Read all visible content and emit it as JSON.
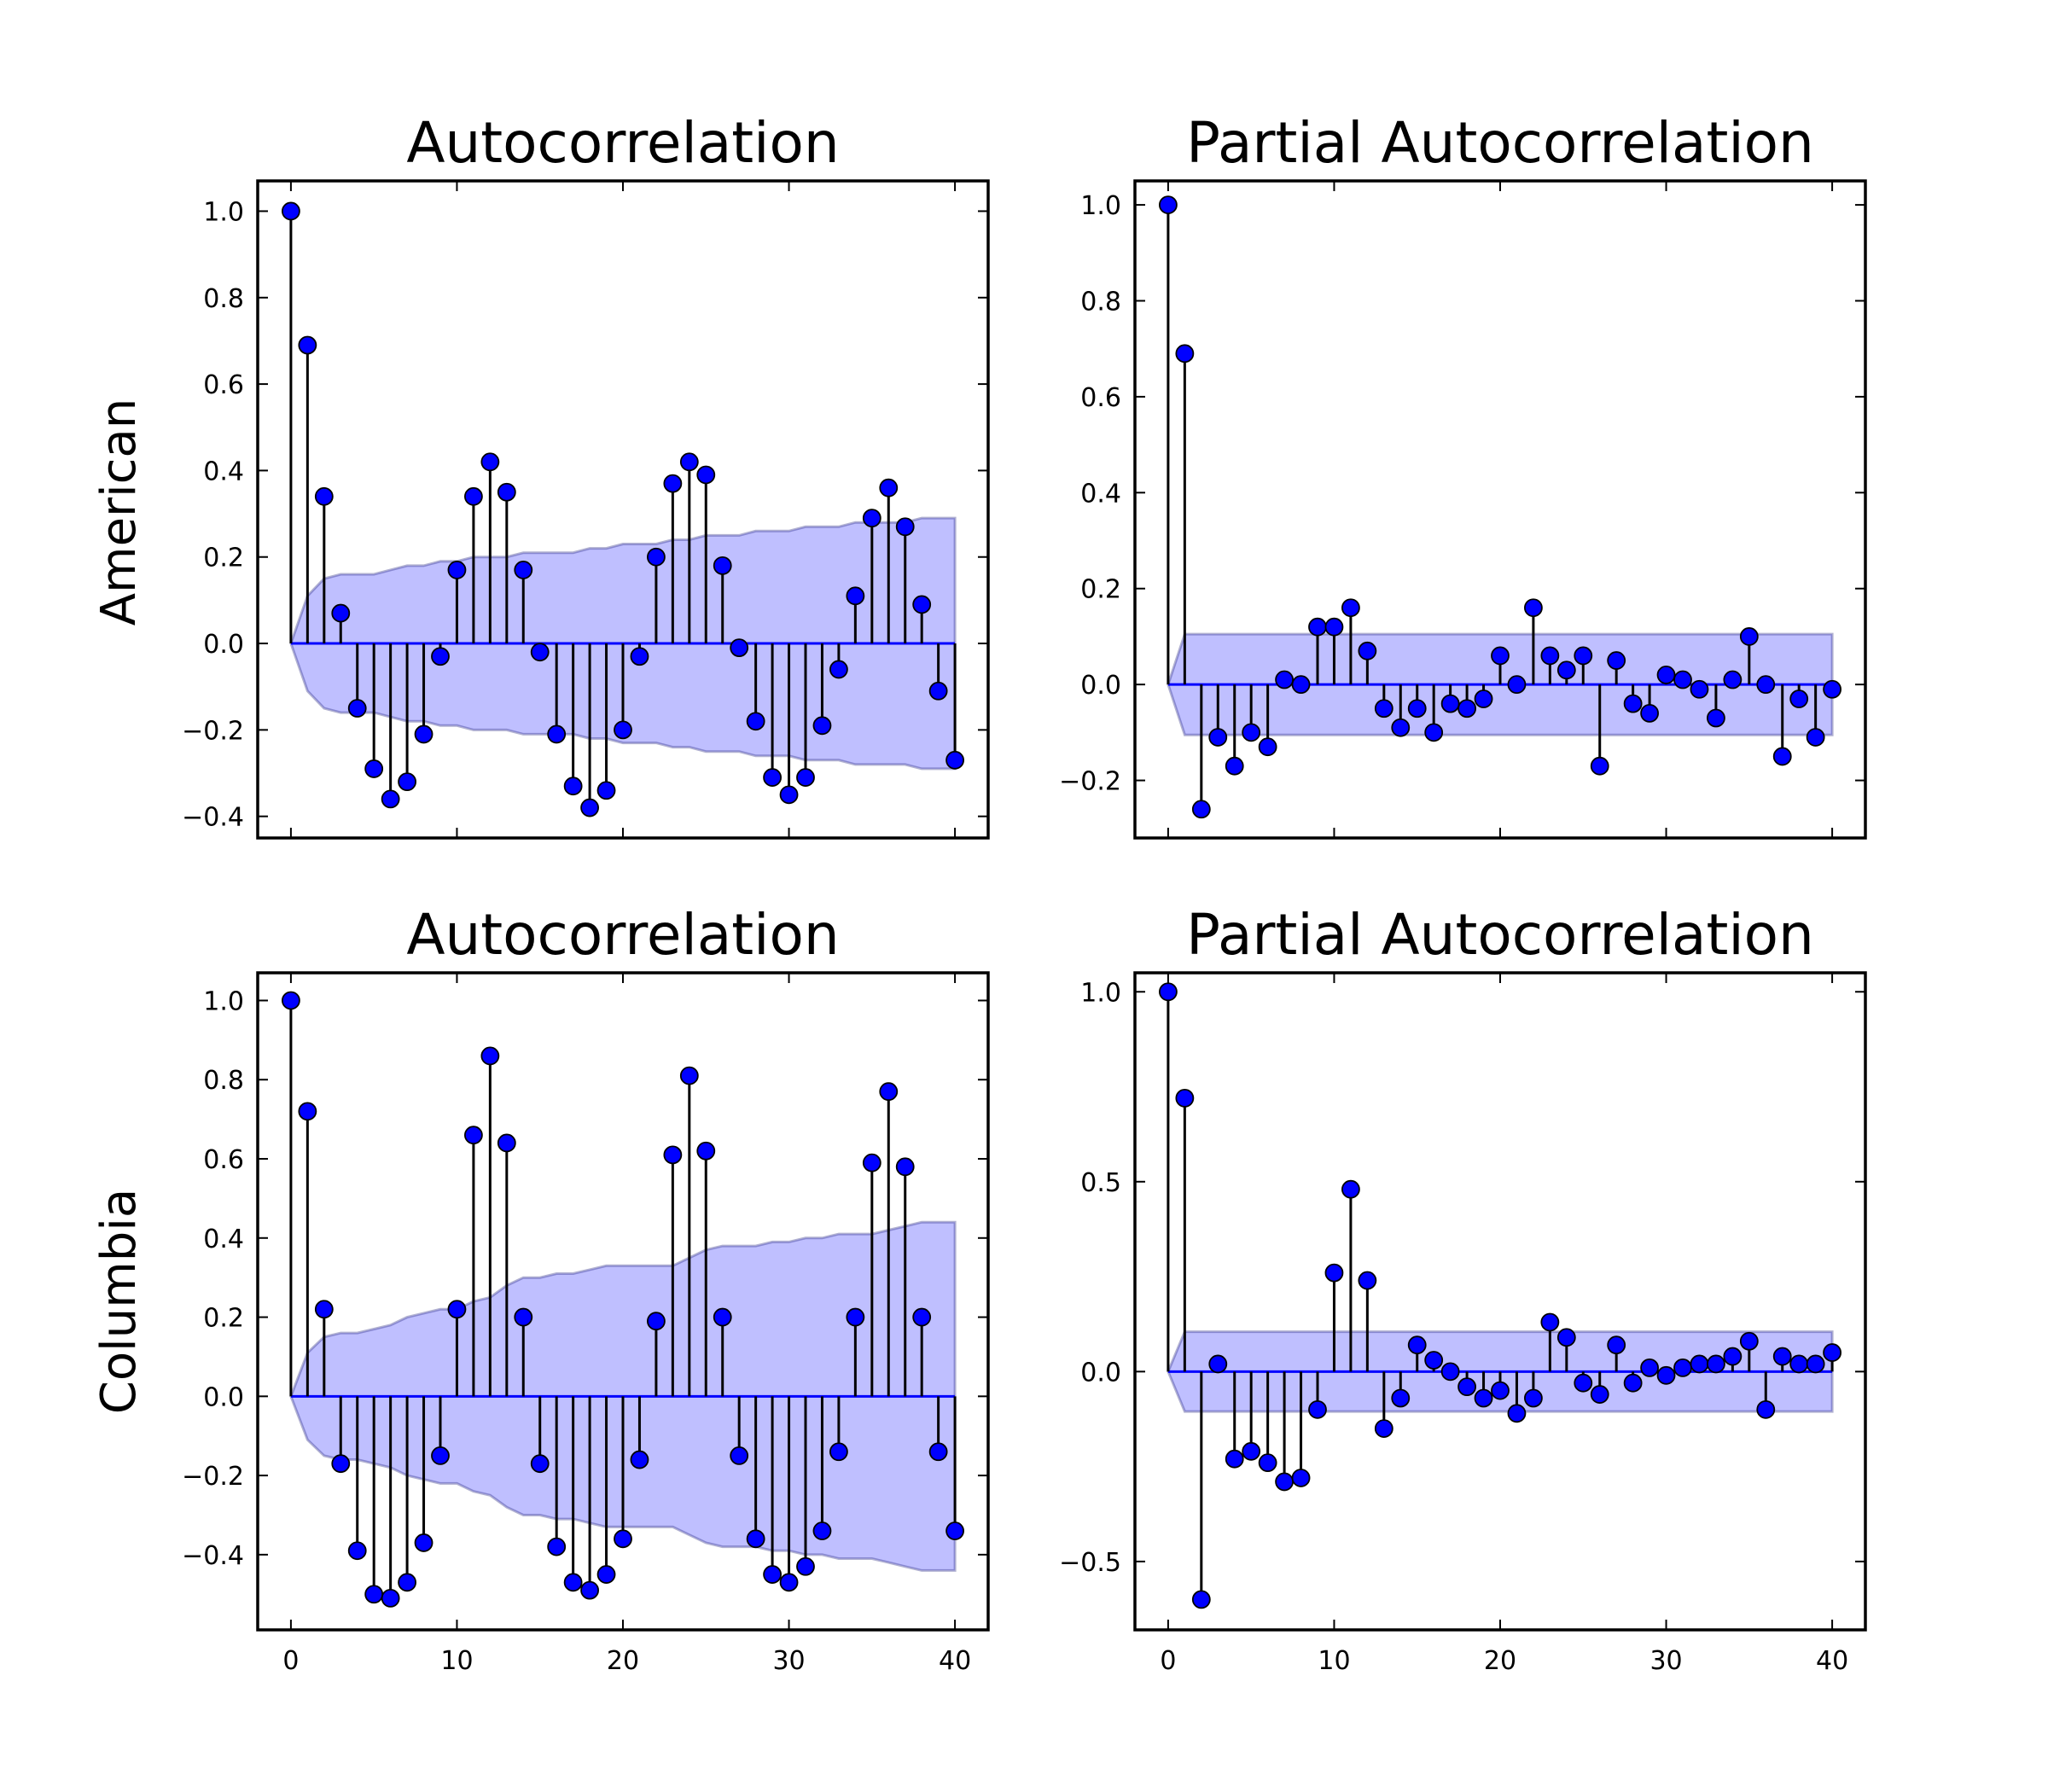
{
  "chart_data": [
    {
      "type": "stem",
      "title": "Autocorrelation",
      "row_label": "American",
      "ylim": [
        -0.45,
        1.07
      ],
      "yticks": [
        -0.4,
        -0.2,
        0.0,
        0.2,
        0.4,
        0.6,
        0.8,
        1.0
      ],
      "ytick_labels": [
        "−0.4",
        "−0.2",
        "0.0",
        "0.2",
        "0.4",
        "0.6",
        "0.8",
        "1.0"
      ],
      "xlim": [
        -2,
        42
      ],
      "xticks": [
        0,
        10,
        20,
        30,
        40
      ],
      "xtick_labels": [],
      "values": [
        1.0,
        0.69,
        0.34,
        0.07,
        -0.15,
        -0.29,
        -0.36,
        -0.32,
        -0.21,
        -0.03,
        0.17,
        0.34,
        0.42,
        0.35,
        0.17,
        -0.02,
        -0.21,
        -0.33,
        -0.38,
        -0.34,
        -0.2,
        -0.03,
        0.2,
        0.37,
        0.42,
        0.39,
        0.18,
        -0.01,
        -0.18,
        -0.31,
        -0.35,
        -0.31,
        -0.19,
        -0.06,
        0.11,
        0.29,
        0.36,
        0.27,
        0.09,
        -0.11,
        -0.27
      ],
      "confidence_band": [
        0.0,
        0.11,
        0.15,
        0.16,
        0.16,
        0.16,
        0.17,
        0.18,
        0.18,
        0.19,
        0.19,
        0.2,
        0.2,
        0.2,
        0.21,
        0.21,
        0.21,
        0.21,
        0.22,
        0.22,
        0.23,
        0.23,
        0.23,
        0.24,
        0.24,
        0.25,
        0.25,
        0.25,
        0.26,
        0.26,
        0.26,
        0.27,
        0.27,
        0.27,
        0.28,
        0.28,
        0.28,
        0.28,
        0.29,
        0.29,
        0.29
      ],
      "grid": false
    },
    {
      "type": "stem",
      "title": "Partial Autocorrelation",
      "row_label": "",
      "ylim": [
        -0.32,
        1.05
      ],
      "yticks": [
        -0.2,
        0.0,
        0.2,
        0.4,
        0.6,
        0.8,
        1.0
      ],
      "ytick_labels": [
        "−0.2",
        "0.0",
        "0.2",
        "0.4",
        "0.6",
        "0.8",
        "1.0"
      ],
      "xlim": [
        -2,
        42
      ],
      "xticks": [
        0,
        10,
        20,
        30,
        40
      ],
      "xtick_labels": [],
      "values": [
        1.0,
        0.69,
        -0.26,
        -0.11,
        -0.17,
        -0.1,
        -0.13,
        0.01,
        0.0,
        0.12,
        0.12,
        0.16,
        0.07,
        -0.05,
        -0.09,
        -0.05,
        -0.1,
        -0.04,
        -0.05,
        -0.03,
        0.06,
        0.0,
        0.16,
        0.06,
        0.03,
        0.06,
        -0.17,
        0.05,
        -0.04,
        -0.06,
        0.02,
        0.01,
        -0.01,
        -0.07,
        0.01,
        0.1,
        0.0,
        -0.15,
        -0.03,
        -0.11,
        -0.01
      ],
      "confidence_band": [
        0.0,
        0.105,
        0.105,
        0.105,
        0.105,
        0.105,
        0.105,
        0.105,
        0.105,
        0.105,
        0.105,
        0.105,
        0.105,
        0.105,
        0.105,
        0.105,
        0.105,
        0.105,
        0.105,
        0.105,
        0.105,
        0.105,
        0.105,
        0.105,
        0.105,
        0.105,
        0.105,
        0.105,
        0.105,
        0.105,
        0.105,
        0.105,
        0.105,
        0.105,
        0.105,
        0.105,
        0.105,
        0.105,
        0.105,
        0.105,
        0.105
      ],
      "grid": false
    },
    {
      "type": "stem",
      "title": "Autocorrelation",
      "row_label": "Columbia",
      "ylim": [
        -0.59,
        1.07
      ],
      "yticks": [
        -0.4,
        -0.2,
        0.0,
        0.2,
        0.4,
        0.6,
        0.8,
        1.0
      ],
      "ytick_labels": [
        "−0.4",
        "−0.2",
        "0.0",
        "0.2",
        "0.4",
        "0.6",
        "0.8",
        "1.0"
      ],
      "xlim": [
        -2,
        42
      ],
      "xticks": [
        0,
        10,
        20,
        30,
        40
      ],
      "xtick_labels": [
        "0",
        "10",
        "20",
        "30",
        "40"
      ],
      "values": [
        1.0,
        0.72,
        0.22,
        -0.17,
        -0.39,
        -0.5,
        -0.51,
        -0.47,
        -0.37,
        -0.15,
        0.22,
        0.66,
        0.86,
        0.64,
        0.2,
        -0.17,
        -0.38,
        -0.47,
        -0.49,
        -0.45,
        -0.36,
        -0.16,
        0.19,
        0.61,
        0.81,
        0.62,
        0.2,
        -0.15,
        -0.36,
        -0.45,
        -0.47,
        -0.43,
        -0.34,
        -0.14,
        0.2,
        0.59,
        0.77,
        0.58,
        0.2,
        -0.14,
        -0.34
      ],
      "confidence_band": [
        0.0,
        0.11,
        0.15,
        0.16,
        0.16,
        0.17,
        0.18,
        0.2,
        0.21,
        0.22,
        0.22,
        0.24,
        0.25,
        0.28,
        0.3,
        0.3,
        0.31,
        0.31,
        0.32,
        0.33,
        0.33,
        0.33,
        0.33,
        0.33,
        0.35,
        0.37,
        0.38,
        0.38,
        0.38,
        0.39,
        0.39,
        0.4,
        0.4,
        0.41,
        0.41,
        0.41,
        0.42,
        0.43,
        0.44,
        0.44,
        0.44
      ],
      "grid": false
    },
    {
      "type": "stem",
      "title": "Partial Autocorrelation",
      "row_label": "",
      "ylim": [
        -0.68,
        1.05
      ],
      "yticks": [
        -0.5,
        0.0,
        0.5,
        1.0
      ],
      "ytick_labels": [
        "−0.5",
        "0.0",
        "0.5",
        "1.0"
      ],
      "xlim": [
        -2,
        42
      ],
      "xticks": [
        0,
        10,
        20,
        30,
        40
      ],
      "xtick_labels": [
        "0",
        "10",
        "20",
        "30",
        "40"
      ],
      "values": [
        1.0,
        0.72,
        -0.6,
        0.02,
        -0.23,
        -0.21,
        -0.24,
        -0.29,
        -0.28,
        -0.1,
        0.26,
        0.48,
        0.24,
        -0.15,
        -0.07,
        0.07,
        0.03,
        0.0,
        -0.04,
        -0.07,
        -0.05,
        -0.11,
        -0.07,
        0.13,
        0.09,
        -0.03,
        -0.06,
        0.07,
        -0.03,
        0.01,
        -0.01,
        0.01,
        0.02,
        0.02,
        0.04,
        0.08,
        -0.1,
        0.04,
        0.02,
        0.02,
        0.05
      ],
      "confidence_band": [
        0.0,
        0.105,
        0.105,
        0.105,
        0.105,
        0.105,
        0.105,
        0.105,
        0.105,
        0.105,
        0.105,
        0.105,
        0.105,
        0.105,
        0.105,
        0.105,
        0.105,
        0.105,
        0.105,
        0.105,
        0.105,
        0.105,
        0.105,
        0.105,
        0.105,
        0.105,
        0.105,
        0.105,
        0.105,
        0.105,
        0.105,
        0.105,
        0.105,
        0.105,
        0.105,
        0.105,
        0.105,
        0.105,
        0.105,
        0.105,
        0.105
      ],
      "grid": false
    }
  ]
}
